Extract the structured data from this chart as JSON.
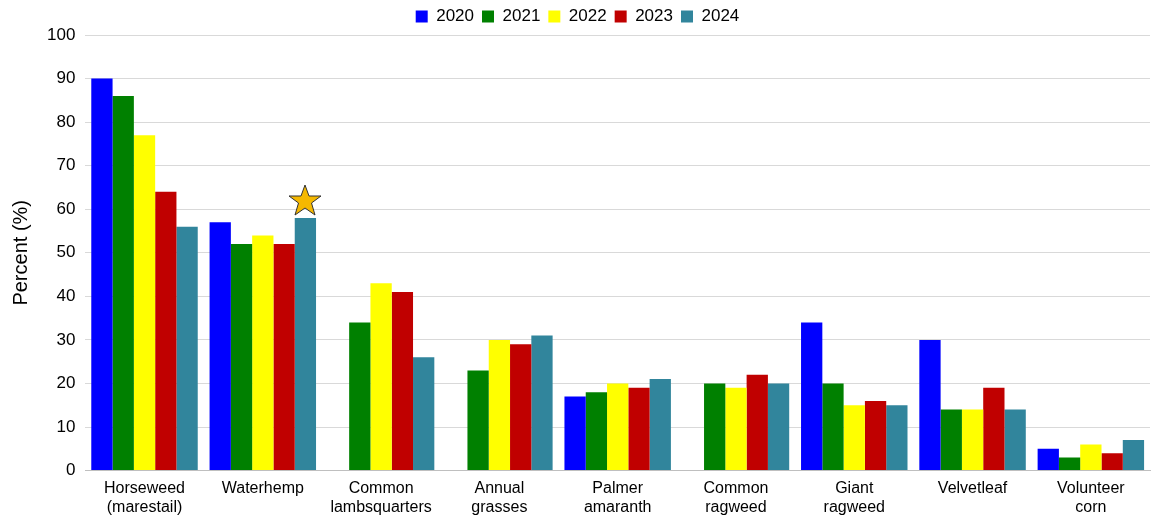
{
  "chart_data": {
    "type": "bar",
    "ylabel": "Percent (%)",
    "categories": [
      "Horseweed\n(marestail)",
      "Waterhemp",
      "Common\nlambsquarters",
      "Annual\ngrasses",
      "Palmer\namaranth",
      "Common\nragweed",
      "Giant\nragweed",
      "Velvetleaf",
      "Volunteer\ncorn"
    ],
    "series": [
      {
        "name": "2020",
        "color": "#0000ff",
        "values": [
          90,
          57,
          null,
          null,
          17,
          null,
          34,
          30,
          5
        ]
      },
      {
        "name": "2021",
        "color": "#008000",
        "values": [
          86,
          52,
          34,
          23,
          18,
          20,
          20,
          14,
          3
        ]
      },
      {
        "name": "2022",
        "color": "#ffff00",
        "values": [
          77,
          54,
          43,
          30,
          20,
          19,
          15,
          14,
          6
        ]
      },
      {
        "name": "2023",
        "color": "#c00000",
        "values": [
          64,
          52,
          41,
          29,
          19,
          22,
          16,
          19,
          4
        ]
      },
      {
        "name": "2024",
        "color": "#31859c",
        "values": [
          56,
          58,
          26,
          31,
          21,
          20,
          15,
          14,
          7
        ]
      }
    ],
    "ylim": [
      0,
      100
    ],
    "yticks": [
      0,
      10,
      20,
      30,
      40,
      50,
      60,
      70,
      80,
      90,
      100
    ],
    "grid": "y",
    "legend": "top"
  }
}
